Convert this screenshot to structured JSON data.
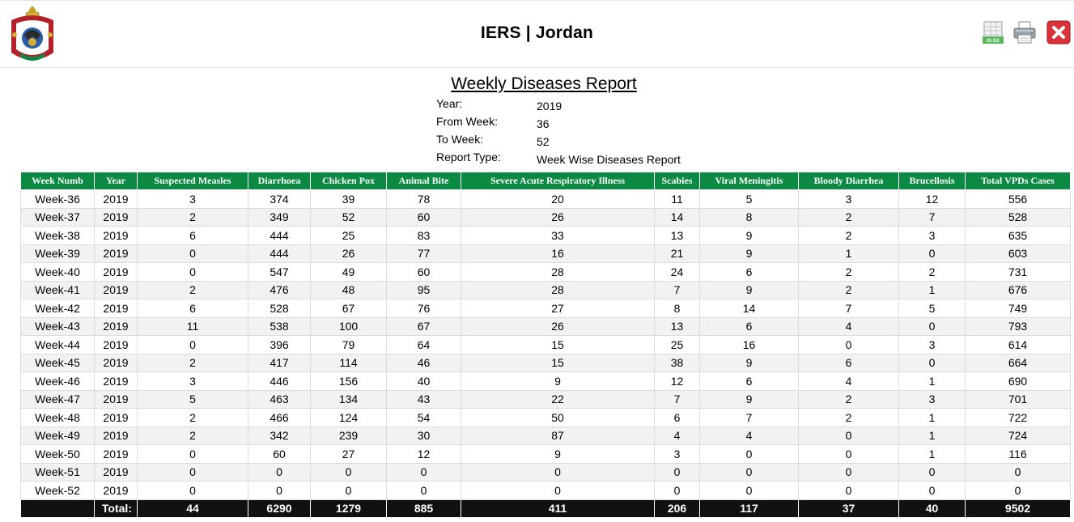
{
  "header": {
    "app_title": "IERS | Jordan"
  },
  "toolbar": {
    "xlsx_badge": "XLSX",
    "icons": [
      "xlsx-export-icon",
      "print-icon",
      "close-icon"
    ],
    "colors": {
      "xlsx": "#5cb85c",
      "close": "#d9333a"
    }
  },
  "report": {
    "title": "Weekly Diseases Report",
    "meta": [
      {
        "label": "Year:",
        "value": "2019"
      },
      {
        "label": "From Week:",
        "value": "36"
      },
      {
        "label": "To Week:",
        "value": "52"
      },
      {
        "label": "Report Type:",
        "value": "Week Wise Diseases Report"
      }
    ]
  },
  "table": {
    "header_color": "#0c8a44",
    "total_row_color": "#111111",
    "columns": [
      "Week Numb",
      "Year",
      "Suspected Measles",
      "Diarrhoea",
      "Chicken Pox",
      "Animal Bite",
      "Severe Acute Respiratory Illness",
      "Scabies",
      "Viral Meningitis",
      "Bloody Diarrhea",
      "Brucellosis",
      "Total VPDs Cases"
    ],
    "rows": [
      [
        "Week-36",
        "2019",
        "3",
        "374",
        "39",
        "78",
        "20",
        "11",
        "5",
        "3",
        "12",
        "556"
      ],
      [
        "Week-37",
        "2019",
        "2",
        "349",
        "52",
        "60",
        "26",
        "14",
        "8",
        "2",
        "7",
        "528"
      ],
      [
        "Week-38",
        "2019",
        "6",
        "444",
        "25",
        "83",
        "33",
        "13",
        "9",
        "2",
        "3",
        "635"
      ],
      [
        "Week-39",
        "2019",
        "0",
        "444",
        "26",
        "77",
        "16",
        "21",
        "9",
        "1",
        "0",
        "603"
      ],
      [
        "Week-40",
        "2019",
        "0",
        "547",
        "49",
        "60",
        "28",
        "24",
        "6",
        "2",
        "2",
        "731"
      ],
      [
        "Week-41",
        "2019",
        "2",
        "476",
        "48",
        "95",
        "28",
        "7",
        "9",
        "2",
        "1",
        "676"
      ],
      [
        "Week-42",
        "2019",
        "6",
        "528",
        "67",
        "76",
        "27",
        "8",
        "14",
        "7",
        "5",
        "749"
      ],
      [
        "Week-43",
        "2019",
        "11",
        "538",
        "100",
        "67",
        "26",
        "13",
        "6",
        "4",
        "0",
        "793"
      ],
      [
        "Week-44",
        "2019",
        "0",
        "396",
        "79",
        "64",
        "15",
        "25",
        "16",
        "0",
        "3",
        "614"
      ],
      [
        "Week-45",
        "2019",
        "2",
        "417",
        "114",
        "46",
        "15",
        "38",
        "9",
        "6",
        "0",
        "664"
      ],
      [
        "Week-46",
        "2019",
        "3",
        "446",
        "156",
        "40",
        "9",
        "12",
        "6",
        "4",
        "1",
        "690"
      ],
      [
        "Week-47",
        "2019",
        "5",
        "463",
        "134",
        "43",
        "22",
        "7",
        "9",
        "2",
        "3",
        "701"
      ],
      [
        "Week-48",
        "2019",
        "2",
        "466",
        "124",
        "54",
        "50",
        "6",
        "7",
        "2",
        "1",
        "722"
      ],
      [
        "Week-49",
        "2019",
        "2",
        "342",
        "239",
        "30",
        "87",
        "4",
        "4",
        "0",
        "1",
        "724"
      ],
      [
        "Week-50",
        "2019",
        "0",
        "60",
        "27",
        "12",
        "9",
        "3",
        "0",
        "0",
        "1",
        "116"
      ],
      [
        "Week-51",
        "2019",
        "0",
        "0",
        "0",
        "0",
        "0",
        "0",
        "0",
        "0",
        "0",
        "0"
      ],
      [
        "Week-52",
        "2019",
        "0",
        "0",
        "0",
        "0",
        "0",
        "0",
        "0",
        "0",
        "0",
        "0"
      ]
    ],
    "totals": {
      "label": "Total:",
      "values": [
        "44",
        "6290",
        "1279",
        "885",
        "411",
        "206",
        "117",
        "37",
        "40",
        "9502"
      ]
    }
  }
}
